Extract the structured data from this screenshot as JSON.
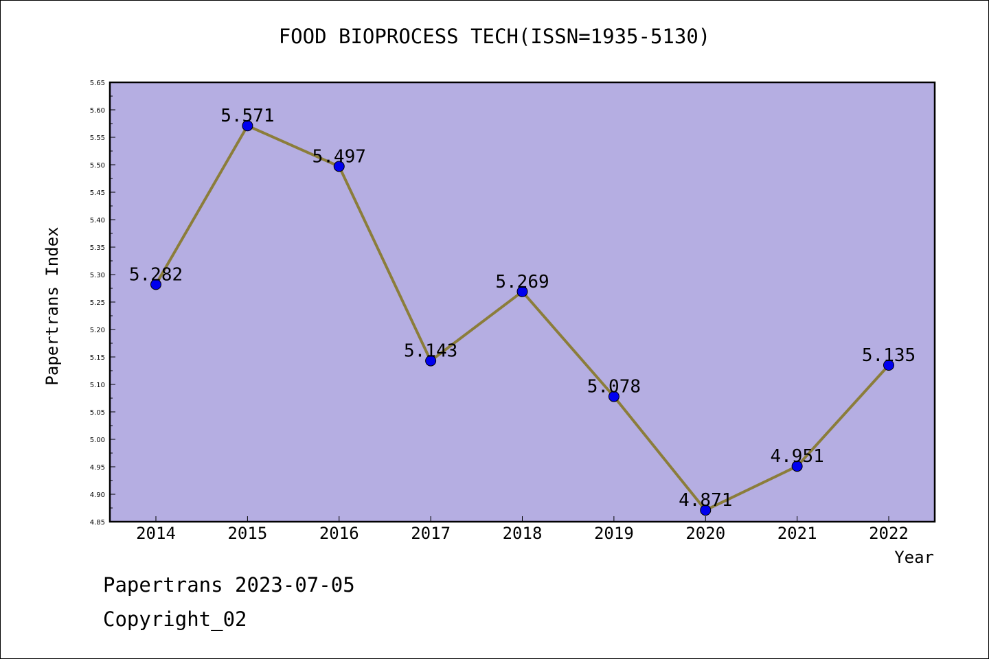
{
  "chart_data": {
    "type": "line",
    "title": "FOOD BIOPROCESS TECH(ISSN=1935-5130)",
    "xlabel": "Year",
    "ylabel": "Papertrans Index",
    "categories": [
      "2014",
      "2015",
      "2016",
      "2017",
      "2018",
      "2019",
      "2020",
      "2021",
      "2022"
    ],
    "values": [
      5.282,
      5.571,
      5.497,
      5.143,
      5.269,
      5.078,
      4.871,
      4.951,
      5.135
    ],
    "data_labels": [
      "5.282",
      "5.571",
      "5.497",
      "5.143",
      "5.269",
      "5.078",
      "4.871",
      "4.951",
      "5.135"
    ],
    "ylim": [
      4.85,
      5.65
    ],
    "yticks": [
      "4.85",
      "4.90",
      "4.95",
      "5.00",
      "5.05",
      "5.10",
      "5.15",
      "5.20",
      "5.25",
      "5.30",
      "5.35",
      "5.40",
      "5.45",
      "5.50",
      "5.55",
      "5.60",
      "5.65"
    ],
    "grid": false,
    "legend": "none",
    "colors": {
      "plot_background": "#b5aee2",
      "line": "#8b7d3a",
      "marker": "#0000ee"
    }
  },
  "footer": {
    "date_text": "Papertrans 2023-07-05",
    "copyright_text": "Copyright_02"
  }
}
